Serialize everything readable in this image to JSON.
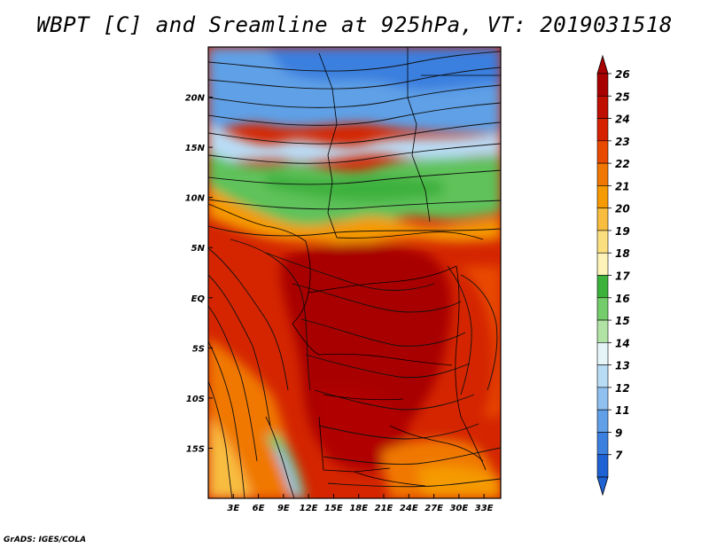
{
  "title": "WBPT [C] and Sreamline at 925hPa, VT: 2019031518",
  "credit": "GrADS: IGES/COLA",
  "map": {
    "lon_labels": [
      "3E",
      "6E",
      "9E",
      "12E",
      "15E",
      "18E",
      "21E",
      "24E",
      "27E",
      "30E",
      "33E"
    ],
    "lon_values": [
      3,
      6,
      9,
      12,
      15,
      18,
      21,
      24,
      27,
      30,
      33
    ],
    "lat_labels": [
      "20N",
      "15N",
      "10N",
      "5N",
      "EQ",
      "5S",
      "10S",
      "15S"
    ],
    "lat_values": [
      20,
      15,
      10,
      5,
      0,
      -5,
      -10,
      -15
    ],
    "lon_range": [
      0,
      35
    ],
    "lat_range": [
      -20,
      25
    ]
  },
  "colorbar": {
    "labels": [
      "26",
      "25",
      "24",
      "23",
      "22",
      "21",
      "20",
      "19",
      "18",
      "17",
      "16",
      "15",
      "14",
      "13",
      "12",
      "11",
      "9",
      "7"
    ],
    "colors": [
      "#a80000",
      "#bf0f00",
      "#d62100",
      "#e84a00",
      "#f07800",
      "#f59a00",
      "#f8bd3f",
      "#fbdf7f",
      "#fdf3b8",
      "#3cb13c",
      "#74cc6b",
      "#b1e3a5",
      "#e6f6f8",
      "#b9dcf5",
      "#8fc0ef",
      "#619fe7",
      "#3b7fdf",
      "#1f62d3"
    ]
  }
}
